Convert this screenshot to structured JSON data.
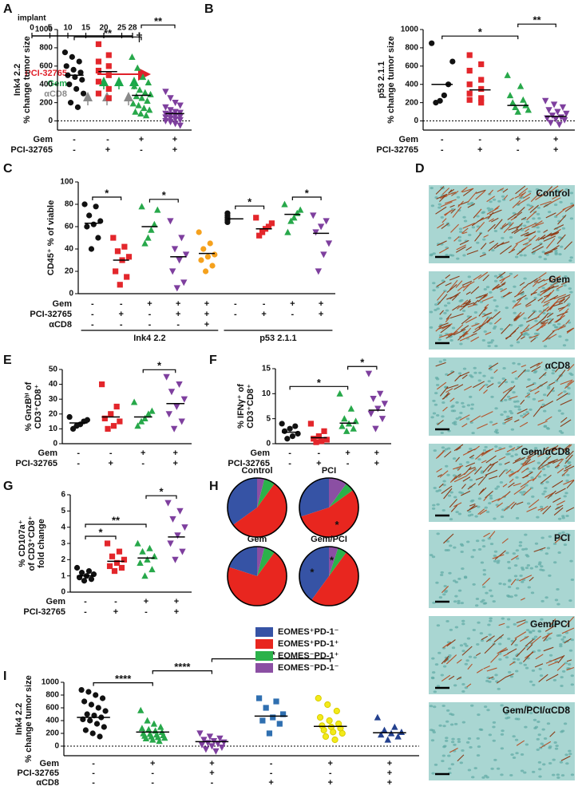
{
  "panel_letters": [
    "A",
    "B",
    "C",
    "D",
    "E",
    "F",
    "G",
    "H",
    "I"
  ],
  "timeline": {
    "title": "implant",
    "xlim": [
      0,
      28
    ],
    "ticks": [
      0,
      5,
      10,
      15,
      20,
      25,
      28
    ],
    "end_mark": "†",
    "treatments": [
      "PCI-32765",
      "Gem",
      "αCD8"
    ],
    "colors": [
      "#e0202a",
      "#1aa84a",
      "#8a8a8a"
    ]
  },
  "micrographs": {
    "labels": [
      "Control",
      "Gem",
      "αCD8",
      "Gem/αCD8",
      "PCI",
      "Gem/PCI",
      "Gem/PCI/αCD8"
    ]
  },
  "chart_data": [
    {
      "type": "dotplot",
      "ylabel": [
        "Ink4 2.2",
        "% change tumor size"
      ],
      "ylim": [
        -100,
        1000
      ],
      "yticks": [
        0,
        200,
        400,
        600,
        800,
        1000
      ],
      "hline": 0,
      "series": [
        {
          "color": "#111111",
          "marker": "circle",
          "values": [
            750,
            700,
            650,
            600,
            560,
            530,
            500,
            480,
            450,
            400,
            350,
            300,
            200,
            150
          ],
          "mean": 500
        },
        {
          "color": "#e3262b",
          "marker": "square",
          "values": [
            840,
            720,
            650,
            600,
            550,
            500,
            430,
            350,
            300,
            250
          ],
          "mean": 540
        },
        {
          "color": "#27a84a",
          "marker": "triangle",
          "values": [
            700,
            580,
            480,
            420,
            380,
            340,
            310,
            290,
            270,
            250,
            220,
            190,
            170,
            140,
            120,
            100,
            80,
            60
          ],
          "mean": 280
        },
        {
          "color": "#7e3f9e",
          "marker": "triangle-down",
          "values": [
            320,
            250,
            200,
            170,
            150,
            120,
            100,
            90,
            80,
            70,
            60,
            50,
            40,
            30,
            20,
            10,
            0,
            -10,
            -30,
            -50
          ],
          "mean": 80
        }
      ],
      "brackets": [
        {
          "between": [
            0,
            2
          ],
          "label": "**"
        },
        {
          "between": [
            2,
            3
          ],
          "label": "**"
        }
      ],
      "rows": [
        {
          "name": "Gem",
          "marks": [
            "-",
            "-",
            "+",
            "+"
          ]
        },
        {
          "name": "PCI-32765",
          "marks": [
            "-",
            "+",
            "-",
            "+"
          ]
        }
      ]
    },
    {
      "type": "dotplot",
      "ylabel": [
        "p53 2.1.1",
        "% change tumor size"
      ],
      "ylim": [
        -100,
        1000
      ],
      "yticks": [
        0,
        200,
        400,
        600,
        800,
        1000
      ],
      "hline": 0,
      "series": [
        {
          "color": "#111111",
          "marker": "circle",
          "values": [
            850,
            650,
            400,
            280,
            220,
            200
          ],
          "mean": 400
        },
        {
          "color": "#e3262b",
          "marker": "square",
          "values": [
            720,
            620,
            550,
            450,
            400,
            350,
            300,
            250,
            230,
            200
          ],
          "mean": 340
        },
        {
          "color": "#27a84a",
          "marker": "triangle",
          "values": [
            500,
            380,
            280,
            230,
            200,
            170,
            150,
            120,
            100
          ],
          "mean": 170
        },
        {
          "color": "#7e3f9e",
          "marker": "triangle-down",
          "values": [
            220,
            180,
            150,
            120,
            100,
            80,
            60,
            40,
            30,
            20,
            10,
            -20,
            -40
          ],
          "mean": 50
        }
      ],
      "brackets": [
        {
          "between": [
            0,
            2
          ],
          "label": "*"
        },
        {
          "between": [
            2,
            3
          ],
          "label": "**"
        }
      ],
      "rows": [
        {
          "name": "Gem",
          "marks": [
            "-",
            "-",
            "+",
            "+"
          ]
        },
        {
          "name": "PCI-32765",
          "marks": [
            "-",
            "+",
            "-",
            "+"
          ]
        }
      ]
    },
    {
      "type": "dotplot",
      "ylabel": [
        "CD45⁺ % of viable"
      ],
      "ylim": [
        0,
        100
      ],
      "yticks": [
        0,
        20,
        40,
        60,
        80,
        100
      ],
      "series": [
        {
          "color": "#111111",
          "marker": "circle",
          "values": [
            80,
            78,
            70,
            65,
            62,
            60,
            50,
            40
          ],
          "mean": 63
        },
        {
          "color": "#e3262b",
          "marker": "square",
          "values": [
            50,
            42,
            38,
            33,
            30,
            20,
            15,
            8
          ],
          "mean": 30
        },
        {
          "color": "#27a84a",
          "marker": "triangle",
          "values": [
            78,
            75,
            62,
            57,
            50,
            45
          ],
          "mean": 60
        },
        {
          "color": "#7e3f9e",
          "marker": "triangle-down",
          "values": [
            65,
            50,
            40,
            35,
            30,
            20,
            10,
            5
          ],
          "mean": 33
        },
        {
          "color": "#f5a11d",
          "marker": "circle",
          "values": [
            55,
            45,
            40,
            35,
            33,
            30,
            25,
            20
          ],
          "mean": 36
        },
        {
          "color": "#111111",
          "marker": "circle",
          "values": [
            72,
            70,
            68,
            66,
            64
          ],
          "mean": 67
        },
        {
          "color": "#e3262b",
          "marker": "square",
          "values": [
            68,
            63,
            60,
            58,
            55,
            52
          ],
          "mean": 58
        },
        {
          "color": "#27a84a",
          "marker": "triangle",
          "values": [
            80,
            75,
            72,
            68,
            65,
            55
          ],
          "mean": 71
        },
        {
          "color": "#7e3f9e",
          "marker": "triangle-down",
          "values": [
            70,
            65,
            60,
            55,
            45,
            35,
            20
          ],
          "mean": 54
        }
      ],
      "brackets": [
        {
          "between": [
            0,
            1
          ],
          "label": "*"
        },
        {
          "between": [
            2,
            3
          ],
          "label": "*"
        },
        {
          "between": [
            5,
            6
          ],
          "label": "*"
        },
        {
          "between": [
            7,
            8
          ],
          "label": "*"
        }
      ],
      "rows": [
        {
          "name": "Gem",
          "marks": [
            "-",
            "-",
            "+",
            "+",
            "+",
            "-",
            "-",
            "+",
            "+"
          ]
        },
        {
          "name": "PCI-32765",
          "marks": [
            "-",
            "+",
            "-",
            "+",
            "+",
            "-",
            "+",
            "-",
            "+"
          ]
        },
        {
          "name": "αCD8",
          "marks": [
            "-",
            "-",
            "-",
            "-",
            "+",
            null,
            null,
            null,
            null
          ]
        }
      ],
      "groups": [
        {
          "label": "Ink4 2.2",
          "between": [
            0,
            4
          ]
        },
        {
          "label": "p53 2.1.1",
          "between": [
            5,
            8
          ]
        }
      ]
    },
    {
      "type": "dotplot",
      "ylabel": [
        "% GnzBʰⁱ of",
        "CD3⁺CD8⁺"
      ],
      "ylim": [
        0,
        50
      ],
      "yticks": [
        0,
        10,
        20,
        30,
        40,
        50
      ],
      "series": [
        {
          "color": "#111111",
          "marker": "circle",
          "values": [
            18,
            16,
            15,
            13,
            12,
            10
          ],
          "mean": 14
        },
        {
          "color": "#e3262b",
          "marker": "square",
          "values": [
            40,
            25,
            20,
            17,
            15,
            12,
            10
          ],
          "mean": 18
        },
        {
          "color": "#27a84a",
          "marker": "triangle",
          "values": [
            28,
            22,
            20,
            17,
            15,
            12
          ],
          "mean": 18
        },
        {
          "color": "#7e3f9e",
          "marker": "triangle-down",
          "values": [
            45,
            40,
            35,
            30,
            25,
            20,
            15,
            10
          ],
          "mean": 27
        }
      ],
      "brackets": [
        {
          "between": [
            2,
            3
          ],
          "label": "*"
        }
      ],
      "rows": [
        {
          "name": "Gem",
          "marks": [
            "-",
            "-",
            "+",
            "+"
          ]
        },
        {
          "name": "PCI-32765",
          "marks": [
            "-",
            "+",
            "-",
            "+"
          ]
        }
      ]
    },
    {
      "type": "dotplot",
      "ylabel": [
        "% IFNγ⁺ of",
        "CD3⁺CD8⁺"
      ],
      "ylim": [
        0,
        15
      ],
      "yticks": [
        0,
        5,
        10,
        15
      ],
      "series": [
        {
          "color": "#111111",
          "marker": "circle",
          "values": [
            4,
            3.5,
            3,
            2.5,
            2,
            1.5,
            1
          ],
          "mean": 2.3
        },
        {
          "color": "#e3262b",
          "marker": "square",
          "values": [
            4,
            2.5,
            1.5,
            1,
            0.8,
            0.5,
            0.3
          ],
          "mean": 1.2
        },
        {
          "color": "#27a84a",
          "marker": "triangle",
          "values": [
            10,
            7,
            5,
            4.5,
            4,
            3.5,
            3,
            2.5
          ],
          "mean": 4.1
        },
        {
          "color": "#7e3f9e",
          "marker": "triangle-down",
          "values": [
            14,
            10,
            9,
            8,
            7,
            6,
            5,
            3
          ],
          "mean": 6.7
        }
      ],
      "brackets": [
        {
          "between": [
            0,
            2
          ],
          "label": "*"
        },
        {
          "between": [
            2,
            3
          ],
          "label": "*"
        }
      ],
      "rows": [
        {
          "name": "Gem",
          "marks": [
            "-",
            "-",
            "+",
            "+"
          ]
        },
        {
          "name": "PCI-32765",
          "marks": [
            "-",
            "+",
            "-",
            "+"
          ]
        }
      ]
    },
    {
      "type": "dotplot",
      "ylabel": [
        "% CD107a⁺",
        "of CD3⁺CD8⁺",
        "fold change"
      ],
      "ylim": [
        0,
        6
      ],
      "yticks": [
        0,
        1,
        2,
        3,
        4,
        5,
        6
      ],
      "series": [
        {
          "color": "#111111",
          "marker": "circle",
          "values": [
            1.5,
            1.3,
            1.2,
            1.1,
            1.0,
            0.9,
            0.8,
            0.7
          ],
          "mean": 1.0
        },
        {
          "color": "#e3262b",
          "marker": "square",
          "values": [
            3.0,
            2.5,
            2.2,
            2.0,
            1.8,
            1.6,
            1.5,
            1.3
          ],
          "mean": 1.9
        },
        {
          "color": "#27a84a",
          "marker": "triangle",
          "values": [
            3.0,
            2.7,
            2.5,
            2.2,
            2.0,
            1.8,
            1.4,
            1.0
          ],
          "mean": 2.1
        },
        {
          "color": "#7e3f9e",
          "marker": "triangle-down",
          "values": [
            5.5,
            5.0,
            4.5,
            4.0,
            3.5,
            3.0,
            2.5,
            2.0
          ],
          "mean": 3.4
        }
      ],
      "brackets": [
        {
          "between": [
            0,
            1
          ],
          "label": "*"
        },
        {
          "between": [
            0,
            2
          ],
          "label": "**"
        },
        {
          "between": [
            2,
            3
          ],
          "label": "*"
        }
      ],
      "rows": [
        {
          "name": "Gem",
          "marks": [
            "-",
            "-",
            "+",
            "+"
          ]
        },
        {
          "name": "PCI-32765",
          "marks": [
            "-",
            "+",
            "-",
            "+"
          ]
        }
      ]
    },
    {
      "type": "dotplot",
      "ylabel": [
        "Ink4 2.2",
        "% change tumor size"
      ],
      "ylim": [
        -150,
        1000
      ],
      "yticks": [
        0,
        200,
        400,
        600,
        800,
        1000
      ],
      "hline": 0,
      "series": [
        {
          "color": "#111111",
          "marker": "circle",
          "values": [
            880,
            850,
            800,
            750,
            700,
            650,
            600,
            550,
            500,
            480,
            450,
            420,
            400,
            350,
            300,
            250,
            200,
            150
          ],
          "mean": 450
        },
        {
          "color": "#27a84a",
          "marker": "triangle",
          "values": [
            560,
            400,
            350,
            300,
            280,
            260,
            240,
            220,
            200,
            190,
            180,
            170,
            160,
            150,
            140,
            130,
            120,
            100,
            80
          ],
          "mean": 220
        },
        {
          "color": "#7e3f9e",
          "marker": "triangle-down",
          "values": [
            200,
            150,
            120,
            100,
            80,
            60,
            50,
            40,
            20,
            0,
            -20,
            -50,
            -80
          ],
          "mean": 70
        },
        {
          "color": "#2f6fb0",
          "marker": "square",
          "values": [
            750,
            700,
            600,
            500,
            450,
            400,
            350,
            200
          ],
          "mean": 470
        },
        {
          "color": "#f3ea1a",
          "marker": "circle",
          "values": [
            750,
            650,
            550,
            450,
            400,
            350,
            320,
            300,
            280,
            250,
            220,
            200,
            150,
            100
          ],
          "mean": 310
        },
        {
          "color": "#23408e",
          "marker": "triangle",
          "values": [
            450,
            300,
            250,
            220,
            200,
            180,
            150,
            100
          ],
          "mean": 210
        }
      ],
      "brackets": [
        {
          "between": [
            0,
            1
          ],
          "label": "****"
        },
        {
          "between": [
            1,
            2
          ],
          "label": "****"
        },
        {
          "between": [
            2,
            4
          ],
          "label": "**"
        }
      ],
      "rows": [
        {
          "name": "Gem",
          "marks": [
            "-",
            "+",
            "+",
            "-",
            "+",
            "+"
          ]
        },
        {
          "name": "PCI-32765",
          "marks": [
            "-",
            "-",
            "+",
            "-",
            "-",
            "+"
          ]
        },
        {
          "name": "αCD8",
          "marks": [
            "-",
            "-",
            "-",
            "+",
            "+",
            "+"
          ]
        }
      ]
    },
    {
      "type": "pie",
      "categories": [
        "EOMES⁺PD-1⁻",
        "EOMES⁺PD-1⁺",
        "EOMES⁻PD-1⁺",
        "EOMES⁻PD-1⁻"
      ],
      "colors": [
        "#3653a5",
        "#e8261f",
        "#2bb24a",
        "#8b4fa3"
      ],
      "pies": [
        {
          "title": "Control",
          "values": [
            35,
            55,
            6,
            4
          ],
          "marks": [
            null,
            null,
            null,
            null
          ]
        },
        {
          "title": "PCI",
          "values": [
            30,
            55,
            5,
            10
          ],
          "marks": [
            null,
            "*",
            null,
            null
          ]
        },
        {
          "title": "Gem",
          "values": [
            20,
            70,
            6,
            4
          ],
          "marks": [
            null,
            null,
            null,
            null
          ]
        },
        {
          "title": "Gem/PCI",
          "values": [
            40,
            50,
            5,
            5
          ],
          "marks": [
            "*",
            null,
            null,
            "*"
          ]
        }
      ]
    }
  ]
}
